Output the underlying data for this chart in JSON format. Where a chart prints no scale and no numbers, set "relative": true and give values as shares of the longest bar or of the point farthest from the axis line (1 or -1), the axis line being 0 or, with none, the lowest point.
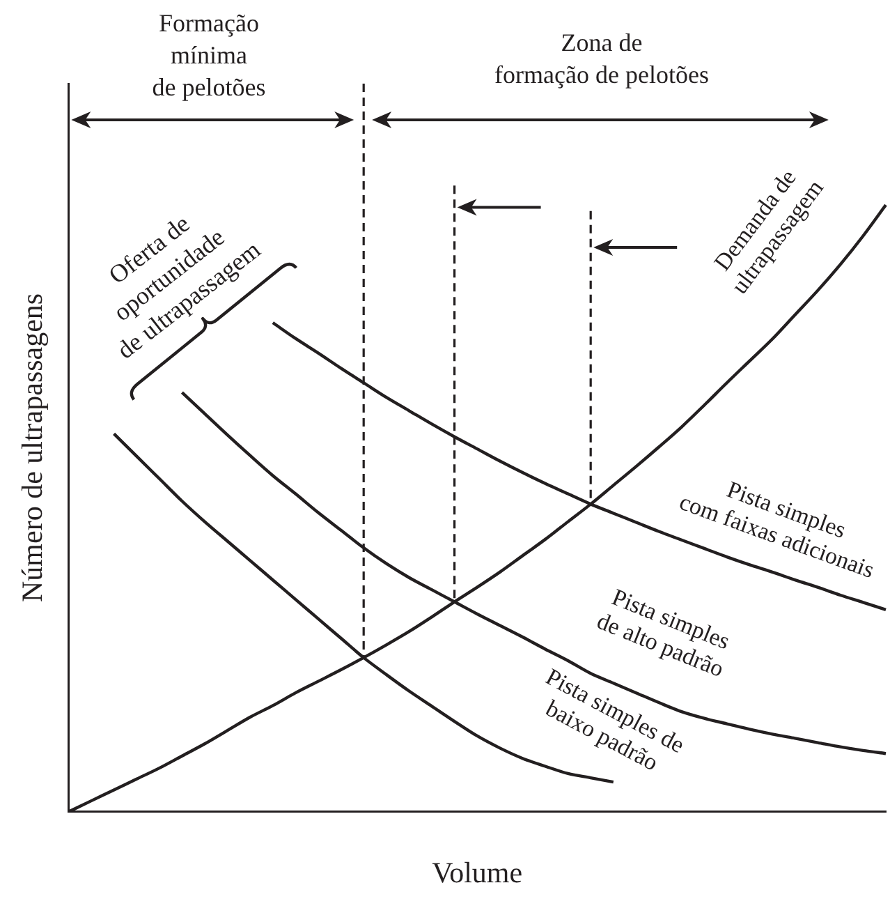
{
  "chart_data": {
    "type": "line",
    "relative": true,
    "xlabel": "Volume",
    "ylabel": "Número de ultrapassagens",
    "marker": "none",
    "line_style": "solid",
    "categories": [
      null,
      null,
      null,
      null,
      null,
      null,
      null,
      null,
      null,
      null,
      null,
      null,
      null,
      null,
      null,
      null,
      null,
      null,
      null,
      null,
      null,
      null,
      null,
      null,
      null,
      null,
      null,
      null,
      null,
      null,
      null,
      null,
      null,
      null,
      null,
      null,
      null
    ],
    "series": [
      {
        "name": "Demanda de\nultrapassagem",
        "color": "#231f20",
        "values": [
          0,
          0.018,
          0.036,
          0.054,
          0.072,
          0.092,
          0.112,
          0.134,
          0.156,
          0.175,
          0.196,
          0.215,
          0.234,
          0.254,
          0.275,
          0.297,
          0.321,
          0.346,
          0.37,
          0.395,
          0.422,
          0.449,
          0.478,
          0.507,
          0.538,
          0.569,
          0.601,
          0.634,
          0.67,
          0.707,
          0.743,
          0.779,
          0.819,
          0.859,
          0.902,
          0.949,
          1
        ]
      },
      {
        "name": "Pista simples\ncom faixas adicionais",
        "color": "#231f20",
        "values": [
          null,
          null,
          null,
          null,
          null,
          null,
          null,
          null,
          null,
          0.806,
          0.78,
          0.756,
          0.731,
          0.707,
          0.683,
          0.661,
          0.639,
          0.618,
          0.598,
          0.578,
          0.559,
          0.541,
          0.524,
          0.507,
          0.492,
          0.477,
          0.462,
          0.448,
          0.434,
          0.42,
          0.407,
          0.395,
          0.382,
          0.37,
          0.357,
          0.345,
          0.333
        ]
      },
      {
        "name": "Pista simples\nde alto padrão",
        "color": "#231f20",
        "values": [
          null,
          null,
          null,
          null,
          null,
          0.691,
          0.656,
          0.621,
          0.587,
          0.554,
          0.524,
          0.493,
          0.464,
          0.435,
          0.409,
          0.386,
          0.366,
          0.346,
          0.326,
          0.307,
          0.288,
          0.268,
          0.249,
          0.228,
          0.212,
          0.196,
          0.18,
          0.165,
          0.154,
          0.145,
          0.136,
          0.128,
          0.121,
          0.114,
          0.107,
          0.101,
          0.096
        ]
      },
      {
        "name": "Pista simples de\nbaixo padrão",
        "color": "#231f20",
        "values": [
          null,
          null,
          0.623,
          0.586,
          0.549,
          0.512,
          0.478,
          0.446,
          0.414,
          0.382,
          0.35,
          0.318,
          0.286,
          0.254,
          0.226,
          0.199,
          0.174,
          0.149,
          0.125,
          0.105,
          0.088,
          0.075,
          0.063,
          0.056,
          0.049,
          null,
          null,
          null,
          null,
          null,
          null,
          null,
          null,
          null,
          null,
          null,
          null
        ]
      }
    ],
    "annotations": [
      "Formação\nmínima\nde pelotões",
      "Zona de\nformação de pelotões",
      "Oferta de\noportunidade\nde ultrapassagem"
    ]
  }
}
